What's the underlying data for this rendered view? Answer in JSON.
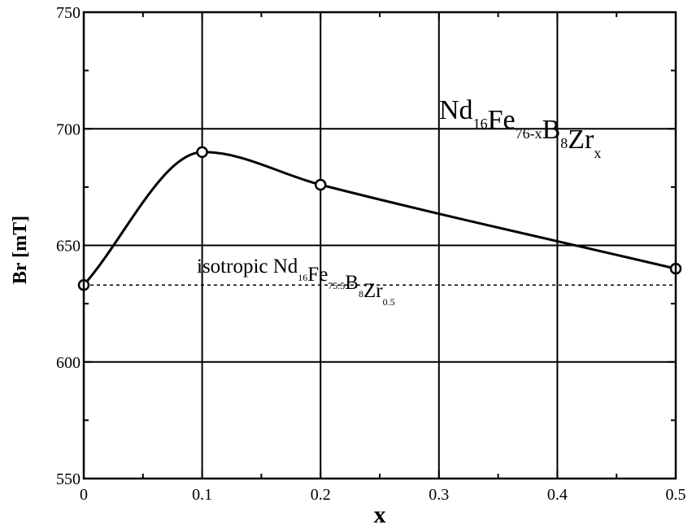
{
  "chart_data": {
    "type": "line",
    "title": "",
    "xlabel": "x",
    "ylabel": "Br [mT]",
    "xlim": [
      0,
      0.5
    ],
    "ylim": [
      550,
      750
    ],
    "x_ticks": [
      0,
      0.1,
      0.2,
      0.3,
      0.4,
      0.5
    ],
    "x_tick_labels": [
      "0",
      "0.1",
      "0.2",
      "0.3",
      "0.4",
      "0.5"
    ],
    "y_ticks": [
      550,
      600,
      650,
      700,
      750
    ],
    "y_tick_labels": [
      "550",
      "600",
      "650",
      "700",
      "750"
    ],
    "grid": true,
    "series": [
      {
        "name": "",
        "markers": "open-circle",
        "x": [
          0,
          0.1,
          0.2,
          0.5
        ],
        "y": [
          633,
          690,
          676,
          640
        ]
      }
    ],
    "reference_line": {
      "style": "dashed",
      "y": 633
    },
    "annotations": {
      "formula": {
        "parts": [
          {
            "text": "Nd",
            "sub": false
          },
          {
            "text": "16",
            "sub": true
          },
          {
            "text": "Fe",
            "sub": false
          },
          {
            "text": "76-x",
            "sub": true
          },
          {
            "text": "B",
            "sub": false
          },
          {
            "text": "8",
            "sub": true
          },
          {
            "text": "Zr",
            "sub": false
          },
          {
            "text": "x",
            "sub": true
          }
        ]
      },
      "isotropic": {
        "parts": [
          {
            "text": "isotropic Nd",
            "sub": false
          },
          {
            "text": "16",
            "sub": true
          },
          {
            "text": "Fe",
            "sub": false
          },
          {
            "text": "75.5",
            "sub": true
          },
          {
            "text": "B",
            "sub": false
          },
          {
            "text": "8",
            "sub": true
          },
          {
            "text": "Zr",
            "sub": false
          },
          {
            "text": "0.5",
            "sub": true
          }
        ]
      }
    }
  }
}
